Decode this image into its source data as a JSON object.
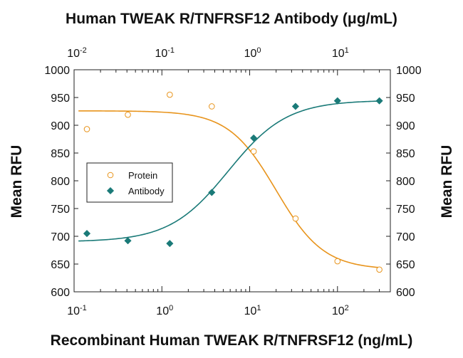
{
  "chart_data": {
    "type": "scatter",
    "title": "Human TWEAK R/TNFRSF12 Antibody (μg/mL)",
    "xlabel": "Recombinant Human TWEAK R/TNFRSF12 (ng/mL)",
    "ylabel_left": "Mean RFU",
    "ylabel_right": "Mean RFU",
    "x_scale": "log",
    "xlim": [
      0.1,
      400
    ],
    "x_ticks": [
      {
        "exp": "-1",
        "value": 0.1
      },
      {
        "exp": "0",
        "value": 1
      },
      {
        "exp": "1",
        "value": 10
      },
      {
        "exp": "2",
        "value": 100
      }
    ],
    "top_axis": {
      "label": "Human TWEAK R/TNFRSF12 Antibody (μg/mL)",
      "scale": "log",
      "xlim": [
        0.01,
        40
      ],
      "ticks": [
        {
          "exp": "-2",
          "value": 0.01
        },
        {
          "exp": "-1",
          "value": 0.1
        },
        {
          "exp": "0",
          "value": 1
        },
        {
          "exp": "1",
          "value": 10
        }
      ]
    },
    "ylim": [
      600,
      1000
    ],
    "y_ticks": [
      600,
      650,
      700,
      750,
      800,
      850,
      900,
      950,
      1000
    ],
    "legend": {
      "position": "left-middle",
      "entries": [
        "Protein",
        "Antibody"
      ]
    },
    "series": [
      {
        "name": "Protein",
        "marker": "open-circle",
        "color": "#E8941C",
        "x": [
          0.14,
          0.41,
          1.23,
          3.7,
          11.1,
          33.3,
          100,
          300
        ],
        "y": [
          893,
          919,
          955,
          934,
          853,
          732,
          655,
          640
        ],
        "fit": {
          "bottom": 640,
          "top": 926,
          "ec50": 20,
          "hill": -1.6
        }
      },
      {
        "name": "Antibody",
        "marker": "filled-diamond",
        "color": "#1A7A78",
        "x": [
          0.14,
          0.41,
          1.23,
          3.7,
          11.1,
          33.3,
          100,
          300
        ],
        "y": [
          705,
          692,
          687,
          779,
          877,
          934,
          944,
          944
        ],
        "fit": {
          "bottom": 690,
          "top": 945,
          "ec50": 5.7,
          "hill": 1.3
        }
      }
    ]
  }
}
